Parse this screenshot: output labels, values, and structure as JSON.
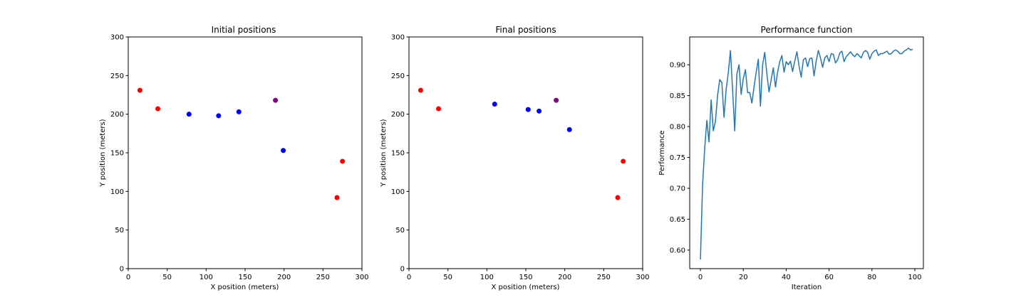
{
  "chart_data": [
    {
      "type": "scatter",
      "title": "Initial positions",
      "xlabel": "X position (meters)",
      "ylabel": "Y position (meters)",
      "xlim": [
        0,
        300
      ],
      "ylim": [
        0,
        300
      ],
      "xticks": [
        0,
        50,
        100,
        150,
        200,
        250,
        300
      ],
      "yticks": [
        0,
        50,
        100,
        150,
        200,
        250,
        300
      ],
      "points": [
        {
          "x": 15,
          "y": 231,
          "color": "#ff0000"
        },
        {
          "x": 38,
          "y": 207,
          "color": "#ff0000"
        },
        {
          "x": 78,
          "y": 200,
          "color": "#0000ff"
        },
        {
          "x": 116,
          "y": 198,
          "color": "#0000ff"
        },
        {
          "x": 142,
          "y": 203,
          "color": "#0000ff"
        },
        {
          "x": 189,
          "y": 218,
          "color": "#800080"
        },
        {
          "x": 199,
          "y": 153,
          "color": "#0000ff"
        },
        {
          "x": 268,
          "y": 92,
          "color": "#ff0000"
        },
        {
          "x": 275,
          "y": 139,
          "color": "#ff0000"
        }
      ]
    },
    {
      "type": "scatter",
      "title": "Final positions",
      "xlabel": "X position (meters)",
      "ylabel": "Y position (meters)",
      "xlim": [
        0,
        300
      ],
      "ylim": [
        0,
        300
      ],
      "xticks": [
        0,
        50,
        100,
        150,
        200,
        250,
        300
      ],
      "yticks": [
        0,
        50,
        100,
        150,
        200,
        250,
        300
      ],
      "points": [
        {
          "x": 15,
          "y": 231,
          "color": "#ff0000"
        },
        {
          "x": 38,
          "y": 207,
          "color": "#ff0000"
        },
        {
          "x": 110,
          "y": 213,
          "color": "#0000ff"
        },
        {
          "x": 153,
          "y": 206,
          "color": "#0000ff"
        },
        {
          "x": 167,
          "y": 204,
          "color": "#0000ff"
        },
        {
          "x": 189,
          "y": 218,
          "color": "#800080"
        },
        {
          "x": 206,
          "y": 180,
          "color": "#0000ff"
        },
        {
          "x": 268,
          "y": 92,
          "color": "#ff0000"
        },
        {
          "x": 275,
          "y": 139,
          "color": "#ff0000"
        }
      ]
    },
    {
      "type": "line",
      "title": "Performance function",
      "xlabel": "Iteration",
      "ylabel": "Performance",
      "xlim": [
        -5,
        104
      ],
      "ylim": [
        0.57,
        0.945
      ],
      "xticks": [
        0,
        20,
        40,
        60,
        80,
        100
      ],
      "yticks": [
        0.6,
        0.65,
        0.7,
        0.75,
        0.8,
        0.85,
        0.9
      ],
      "color": "#1f77b4",
      "x": [
        0,
        1,
        2,
        3,
        4,
        5,
        6,
        7,
        8,
        9,
        10,
        11,
        12,
        13,
        14,
        15,
        16,
        17,
        18,
        19,
        20,
        21,
        22,
        23,
        24,
        25,
        26,
        27,
        28,
        29,
        30,
        31,
        32,
        33,
        34,
        35,
        36,
        37,
        38,
        39,
        40,
        41,
        42,
        43,
        44,
        45,
        46,
        47,
        48,
        49,
        50,
        51,
        52,
        53,
        54,
        55,
        56,
        57,
        58,
        59,
        60,
        61,
        62,
        63,
        64,
        65,
        66,
        67,
        68,
        69,
        70,
        71,
        72,
        73,
        74,
        75,
        76,
        77,
        78,
        79,
        80,
        81,
        82,
        83,
        84,
        85,
        86,
        87,
        88,
        89,
        90,
        91,
        92,
        93,
        94,
        95,
        96,
        97,
        98,
        99
      ],
      "values": [
        0.585,
        0.705,
        0.765,
        0.81,
        0.775,
        0.843,
        0.793,
        0.808,
        0.85,
        0.876,
        0.871,
        0.815,
        0.86,
        0.887,
        0.923,
        0.86,
        0.793,
        0.885,
        0.9,
        0.852,
        0.878,
        0.892,
        0.855,
        0.855,
        0.838,
        0.864,
        0.888,
        0.909,
        0.833,
        0.9,
        0.92,
        0.885,
        0.856,
        0.876,
        0.895,
        0.864,
        0.888,
        0.905,
        0.915,
        0.888,
        0.905,
        0.9,
        0.906,
        0.889,
        0.906,
        0.921,
        0.898,
        0.88,
        0.908,
        0.911,
        0.897,
        0.91,
        0.911,
        0.882,
        0.906,
        0.923,
        0.911,
        0.896,
        0.911,
        0.915,
        0.905,
        0.918,
        0.917,
        0.903,
        0.908,
        0.919,
        0.922,
        0.905,
        0.913,
        0.917,
        0.921,
        0.916,
        0.913,
        0.918,
        0.915,
        0.911,
        0.92,
        0.923,
        0.92,
        0.909,
        0.918,
        0.922,
        0.924,
        0.915,
        0.918,
        0.918,
        0.92,
        0.922,
        0.917,
        0.918,
        0.922,
        0.924,
        0.922,
        0.918,
        0.918,
        0.922,
        0.924,
        0.927,
        0.924,
        0.925
      ]
    }
  ]
}
